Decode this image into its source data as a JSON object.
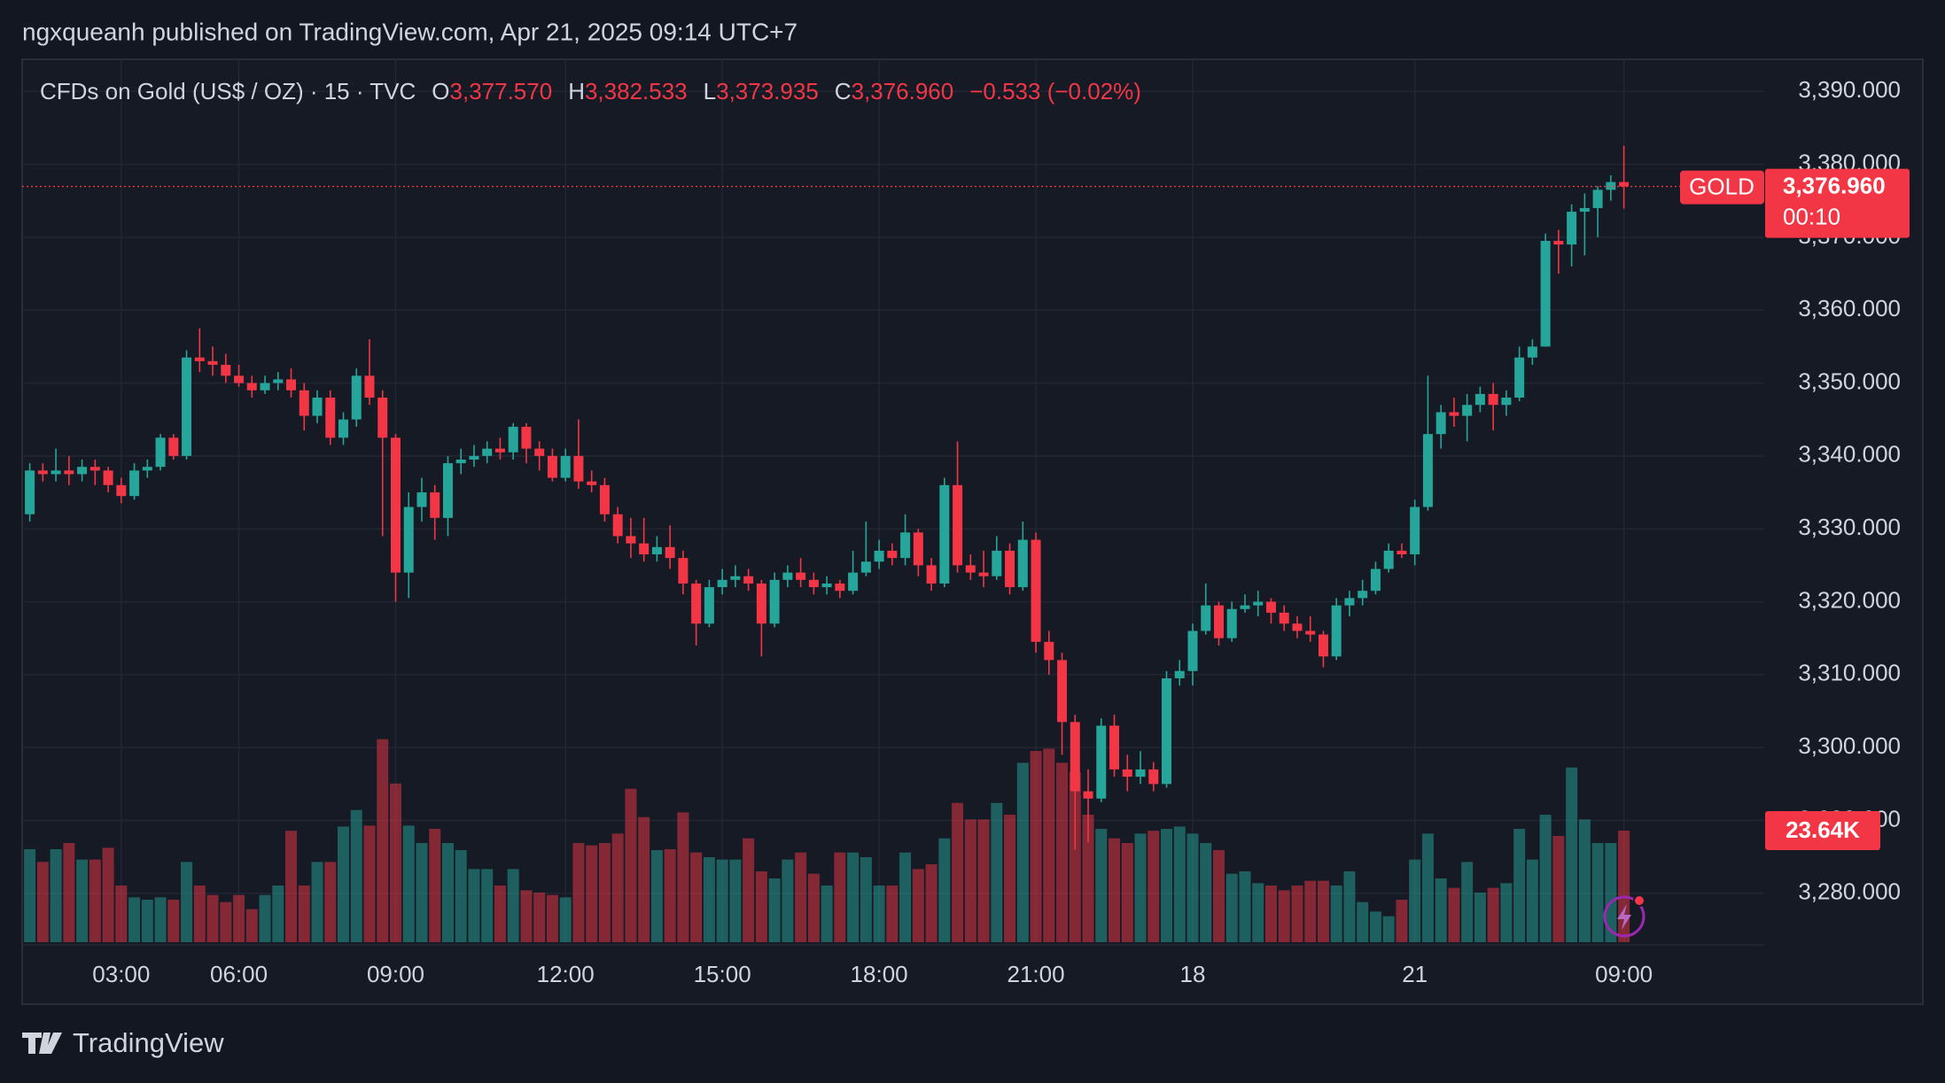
{
  "header": "ngxqueanh published on TradingView.com, Apr 21, 2025 09:14 UTC+7",
  "footer": "TradingView",
  "chart_data": {
    "type": "candlestick",
    "symbol": "CFDs on Gold (US$ / OZ) · 15 · TVC",
    "ohlc_legend": [
      {
        "key": "O",
        "label": "3,377.570"
      },
      {
        "key": "H",
        "label": "3,382.533"
      },
      {
        "key": "L",
        "label": "3,373.935"
      },
      {
        "key": "C",
        "label": "3,376.960"
      }
    ],
    "change": "−0.533 (−0.02%)",
    "symbol_tag": "GOLD",
    "last_price_label": "3,376.960",
    "countdown": "00:10",
    "volume_label": "23.64K",
    "up_color": "#26a69a",
    "down_color": "#f23645",
    "grid": true,
    "ylim": [
      3273.3,
      3394.4
    ],
    "volume_ylim": [
      0,
      187
    ],
    "yticks": [
      {
        "value": 3280,
        "label": "3,280.000"
      },
      {
        "value": 3290,
        "label": "3,290.000"
      },
      {
        "value": 3300,
        "label": "3,300.000"
      },
      {
        "value": 3310,
        "label": "3,310.000"
      },
      {
        "value": 3320,
        "label": "3,320.000"
      },
      {
        "value": 3330,
        "label": "3,330.000"
      },
      {
        "value": 3340,
        "label": "3,340.000"
      },
      {
        "value": 3350,
        "label": "3,350.000"
      },
      {
        "value": 3360,
        "label": "3,360.000"
      },
      {
        "value": 3370,
        "label": "3,370.000"
      },
      {
        "value": 3380,
        "label": "3,380.000"
      },
      {
        "value": 3390,
        "label": "3,390.000"
      }
    ],
    "xticks": [
      {
        "value": 7,
        "label": "03:00"
      },
      {
        "value": 16,
        "label": "06:00"
      },
      {
        "value": 28,
        "label": "09:00"
      },
      {
        "value": 41,
        "label": "12:00"
      },
      {
        "value": 53,
        "label": "15:00"
      },
      {
        "value": 65,
        "label": "18:00"
      },
      {
        "value": 77,
        "label": "21:00"
      },
      {
        "value": 89,
        "label": "18"
      },
      {
        "value": 106,
        "label": "21"
      },
      {
        "value": 122,
        "label": "09:00"
      }
    ],
    "ohlcv": [
      [
        3332,
        3339,
        3331,
        3338,
        19.7
      ],
      [
        3338,
        3339,
        3336.5,
        3337.5,
        17
      ],
      [
        3337.5,
        3341,
        3336.5,
        3338,
        19.7
      ],
      [
        3338,
        3340,
        3336,
        3337.5,
        21
      ],
      [
        3337.5,
        3339.5,
        3336.5,
        3338.5,
        17.5
      ],
      [
        3338.5,
        3339.5,
        3336,
        3338,
        17.5
      ],
      [
        3338,
        3338.5,
        3335,
        3336,
        20
      ],
      [
        3336,
        3337,
        3333.5,
        3334.5,
        12
      ],
      [
        3334.5,
        3339,
        3334,
        3338,
        9.5
      ],
      [
        3338,
        3339.5,
        3337,
        3338.5,
        9
      ],
      [
        3338.5,
        3343,
        3338,
        3342.5,
        9.5
      ],
      [
        3342.5,
        3343,
        3339.5,
        3340,
        9
      ],
      [
        3340,
        3354.5,
        3339.5,
        3353.5,
        17
      ],
      [
        3353.5,
        3357.5,
        3351.5,
        3353,
        12
      ],
      [
        3353,
        3355,
        3351,
        3352.5,
        10
      ],
      [
        3352.5,
        3354,
        3350,
        3351,
        8.5
      ],
      [
        3351,
        3352.5,
        3349.5,
        3350,
        10
      ],
      [
        3350,
        3351,
        3348,
        3349,
        7
      ],
      [
        3349,
        3351,
        3348.5,
        3350,
        10
      ],
      [
        3350,
        3351.5,
        3349,
        3350.5,
        12
      ],
      [
        3350.5,
        3352,
        3348,
        3349,
        23.6
      ],
      [
        3349,
        3350,
        3343.5,
        3345.5,
        12
      ],
      [
        3345.5,
        3349,
        3344.5,
        3348,
        17
      ],
      [
        3348,
        3349,
        3341.5,
        3342.5,
        17
      ],
      [
        3342.5,
        3346,
        3341.5,
        3345,
        24.5
      ],
      [
        3345,
        3352,
        3344,
        3351,
        28
      ],
      [
        3351,
        3356,
        3347,
        3348,
        24.7
      ],
      [
        3348,
        3349,
        3329,
        3342.5,
        43
      ],
      [
        3342.5,
        3343,
        3320,
        3324,
        33.6
      ],
      [
        3324,
        3335,
        3320.5,
        3333,
        24.7
      ],
      [
        3333,
        3337,
        3331,
        3335,
        21
      ],
      [
        3335,
        3336,
        3328.5,
        3331.5,
        24
      ],
      [
        3331.5,
        3340,
        3329,
        3339,
        21
      ],
      [
        3339,
        3341,
        3337.5,
        3339.5,
        19.5
      ],
      [
        3339.5,
        3341.5,
        3338.5,
        3340,
        15.5
      ],
      [
        3340,
        3342,
        3339,
        3341,
        15.5
      ],
      [
        3341,
        3342.5,
        3339.5,
        3340.5,
        12
      ],
      [
        3340.5,
        3344.5,
        3339.5,
        3344,
        15.5
      ],
      [
        3344,
        3344.5,
        3339,
        3341,
        11
      ],
      [
        3341,
        3342,
        3338,
        3340,
        10.5
      ],
      [
        3340,
        3341,
        3336.5,
        3337,
        10
      ],
      [
        3337,
        3341,
        3336.5,
        3340,
        9.5
      ],
      [
        3340,
        3345,
        3335.5,
        3336.5,
        21
      ],
      [
        3336.5,
        3338,
        3335,
        3336,
        20.5
      ],
      [
        3336,
        3337,
        3331,
        3332,
        21
      ],
      [
        3332,
        3333,
        3328,
        3329,
        23
      ],
      [
        3329,
        3331.5,
        3326,
        3328,
        32.5
      ],
      [
        3328,
        3331.5,
        3325.5,
        3326.5,
        26.5
      ],
      [
        3326.5,
        3329,
        3325.5,
        3327.5,
        19.5
      ],
      [
        3327.5,
        3330.5,
        3324.5,
        3326,
        19.7
      ],
      [
        3326,
        3327,
        3321,
        3322.5,
        27.5
      ],
      [
        3322.5,
        3323,
        3314,
        3317,
        19
      ],
      [
        3317,
        3323,
        3316.5,
        3322,
        18
      ],
      [
        3322,
        3324.5,
        3321,
        3323,
        17.5
      ],
      [
        3323,
        3325,
        3322,
        3323.5,
        17.5
      ],
      [
        3323.5,
        3324.5,
        3321.5,
        3322.5,
        22
      ],
      [
        3322.5,
        3323,
        3312.5,
        3317,
        15
      ],
      [
        3317,
        3324,
        3316.5,
        3323,
        13.5
      ],
      [
        3323,
        3325,
        3322,
        3324,
        17.5
      ],
      [
        3324,
        3326,
        3322,
        3323,
        19
      ],
      [
        3323,
        3324,
        3321,
        3322,
        14.5
      ],
      [
        3322,
        3323.5,
        3321,
        3322.5,
        12
      ],
      [
        3322.5,
        3323,
        3320.5,
        3321.5,
        19
      ],
      [
        3321.5,
        3327,
        3321,
        3324,
        19
      ],
      [
        3324,
        3331,
        3323.5,
        3325.5,
        18
      ],
      [
        3325.5,
        3328.5,
        3324.5,
        3327,
        12
      ],
      [
        3327,
        3328,
        3325,
        3326,
        12
      ],
      [
        3326,
        3332,
        3325,
        3329.5,
        19
      ],
      [
        3329.5,
        3330,
        3323.5,
        3325,
        15.5
      ],
      [
        3325,
        3326,
        3321.5,
        3322.5,
        16.5
      ],
      [
        3322.5,
        3337,
        3322,
        3336,
        22
      ],
      [
        3336,
        3342,
        3324,
        3325,
        29.5
      ],
      [
        3325,
        3326.5,
        3323,
        3324,
        26
      ],
      [
        3324,
        3327,
        3322,
        3323.5,
        26
      ],
      [
        3323.5,
        3329,
        3323,
        3327,
        29.5
      ],
      [
        3327,
        3328,
        3321,
        3322,
        27
      ],
      [
        3322,
        3331,
        3321.5,
        3328.5,
        38
      ],
      [
        3328.5,
        3329.5,
        3313,
        3314.5,
        40.5
      ],
      [
        3314.5,
        3316,
        3310,
        3312,
        41
      ],
      [
        3312,
        3313,
        3299,
        3303.5,
        38
      ],
      [
        3303.5,
        3304.5,
        3286,
        3294,
        36
      ],
      [
        3294,
        3297,
        3287,
        3293,
        27
      ],
      [
        3293,
        3304,
        3292.5,
        3303,
        24
      ],
      [
        3303,
        3304.5,
        3296,
        3297,
        22
      ],
      [
        3297,
        3299,
        3294,
        3296,
        21
      ],
      [
        3296,
        3299.5,
        3295,
        3297,
        23
      ],
      [
        3297,
        3298,
        3294,
        3295,
        23.6
      ],
      [
        3295,
        3310.5,
        3294.5,
        3309.5,
        24
      ],
      [
        3309.5,
        3312,
        3308.5,
        3310.5,
        24.5
      ],
      [
        3310.5,
        3317,
        3308.5,
        3316,
        23
      ],
      [
        3316,
        3322.5,
        3315.5,
        3319.5,
        21
      ],
      [
        3319.5,
        3320,
        3314,
        3315,
        19.5
      ],
      [
        3315,
        3320,
        3314.5,
        3319,
        14.5
      ],
      [
        3319,
        3321,
        3318.5,
        3319.5,
        15
      ],
      [
        3319.5,
        3321.5,
        3318,
        3320,
        12.5
      ],
      [
        3320,
        3320.5,
        3317,
        3318.5,
        12
      ],
      [
        3318.5,
        3319.5,
        3316,
        3317,
        11
      ],
      [
        3317,
        3318,
        3315,
        3316,
        12
      ],
      [
        3316,
        3318,
        3314.5,
        3315.5,
        13
      ],
      [
        3315.5,
        3316,
        3311,
        3312.5,
        13
      ],
      [
        3312.5,
        3320.5,
        3312,
        3319.5,
        12
      ],
      [
        3319.5,
        3321.5,
        3318,
        3320.5,
        15
      ],
      [
        3320.5,
        3323,
        3319.5,
        3321.5,
        8.5
      ],
      [
        3321.5,
        3325.5,
        3321,
        3324.5,
        6.5
      ],
      [
        3324.5,
        3328,
        3324,
        3327,
        5.5
      ],
      [
        3327,
        3328,
        3326,
        3326.5,
        9
      ],
      [
        3326.5,
        3334,
        3325,
        3333,
        17.5
      ],
      [
        3333,
        3351,
        3332.5,
        3343,
        23
      ],
      [
        3343,
        3347,
        3341,
        3346,
        13.5
      ],
      [
        3346,
        3348,
        3344,
        3345.5,
        11.5
      ],
      [
        3345.5,
        3348.5,
        3342,
        3347,
        17
      ],
      [
        3347,
        3349.5,
        3346,
        3348.5,
        10.5
      ],
      [
        3348.5,
        3350,
        3343.5,
        3347,
        11.5
      ],
      [
        3347,
        3349,
        3345.5,
        3348,
        12.5
      ],
      [
        3348,
        3355,
        3347.5,
        3353.5,
        24
      ],
      [
        3353.5,
        3356,
        3352.5,
        3355,
        17.5
      ],
      [
        3355,
        3370.5,
        3355,
        3369.5,
        27
      ],
      [
        3369.5,
        3371,
        3365,
        3369,
        22.5
      ],
      [
        3369,
        3374.5,
        3366,
        3373.5,
        37
      ],
      [
        3373.5,
        3376,
        3367.5,
        3374,
        26
      ],
      [
        3374,
        3377,
        3370,
        3376.5,
        21
      ],
      [
        3376.5,
        3378.5,
        3375,
        3377.57,
        21
      ],
      [
        3377.57,
        3382.533,
        3373.935,
        3376.96,
        23.64
      ]
    ]
  }
}
